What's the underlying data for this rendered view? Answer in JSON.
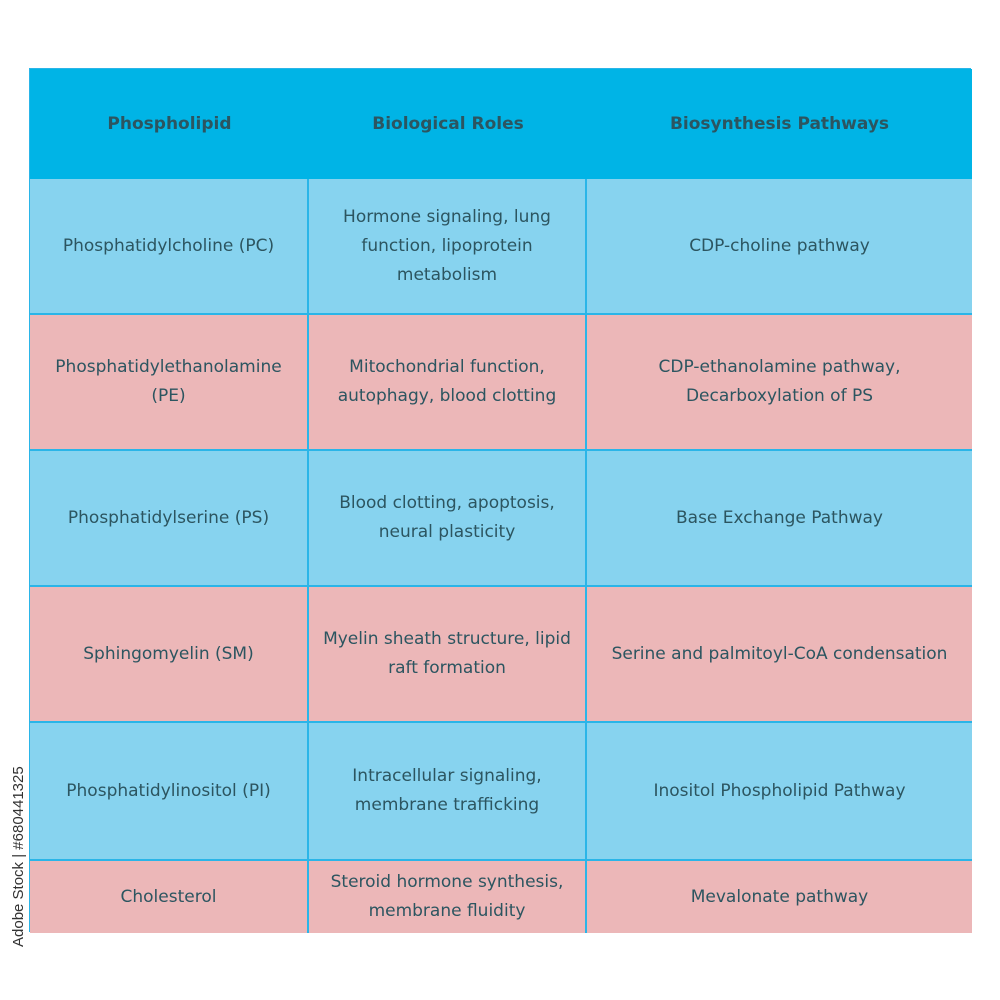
{
  "table": {
    "headers": [
      "Phospholipid",
      "Biological Roles",
      "Biosynthesis Pathways"
    ],
    "rows": [
      [
        "Phosphatidylcholine (PC)",
        "Hormone signaling, lung function, lipoprotein metabolism",
        "CDP-choline pathway"
      ],
      [
        "Phosphatidylethanolamine (PE)",
        "Mitochondrial function, autophagy, blood clotting",
        "CDP-ethanolamine pathway, Decarboxylation of PS"
      ],
      [
        "Phosphatidylserine (PS)",
        "Blood clotting, apoptosis, neural plasticity",
        "Base Exchange Pathway"
      ],
      [
        "Sphingomyelin (SM)",
        "Myelin sheath structure, lipid raft formation",
        "Serine and palmitoyl-CoA condensation"
      ],
      [
        "Phosphatidylinositol (PI)",
        "Intracellular signaling, membrane trafficking",
        "Inositol Phospholipid Pathway"
      ],
      [
        "Cholesterol",
        "Steroid hormone synthesis, membrane fluidity",
        "Mevalonate pathway"
      ]
    ]
  },
  "stock_id": "Adobe Stock | #680441325",
  "colors": {
    "header": "#00b4e6",
    "row_blue": "#87d3ef",
    "row_pink": "#ecb7b8",
    "text": "#2c5560"
  }
}
